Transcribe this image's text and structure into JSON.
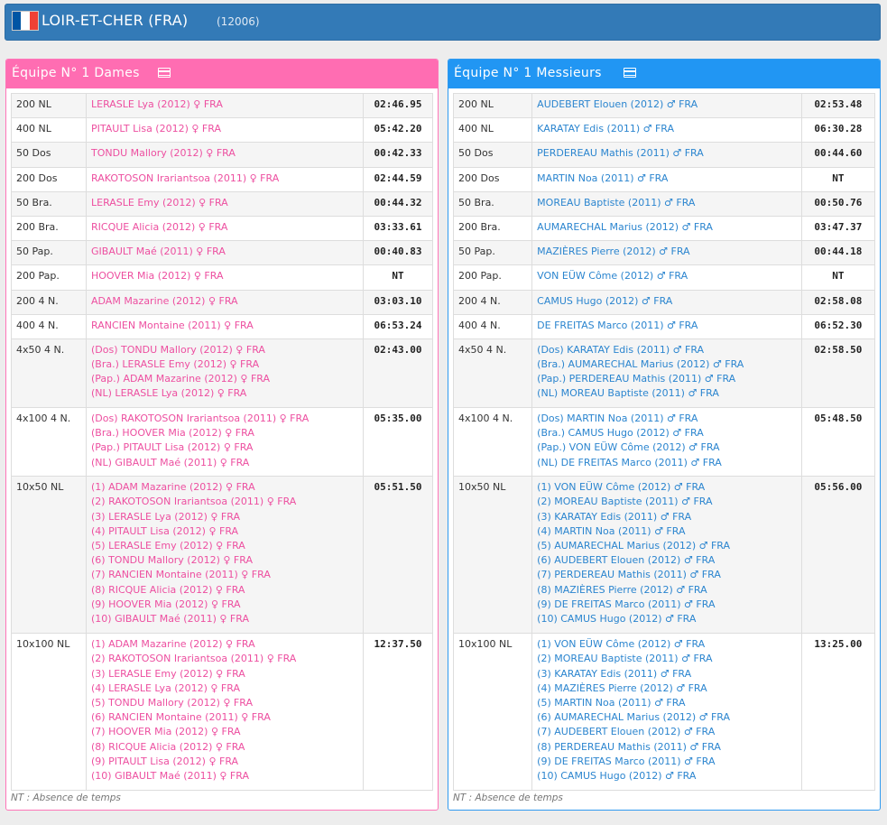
{
  "header": {
    "title": "LOIR-ET-CHER (FRA)",
    "code": "(12006)",
    "flag_colors": [
      "#0055a4",
      "#ffffff",
      "#ef4135"
    ],
    "flag_icon": "france-flag-icon"
  },
  "dames": {
    "title": "Équipe N° 1 Dames",
    "icon": "card-icon",
    "accent": "#ff6db2",
    "note": "NT : Absence de temps",
    "rows": [
      {
        "event": "200 NL",
        "swimmers": [
          "LERASLE Lya (2012) ♀ FRA"
        ],
        "time": "02:46.95"
      },
      {
        "event": "400 NL",
        "swimmers": [
          "PITAULT Lisa (2012) ♀ FRA"
        ],
        "time": "05:42.20"
      },
      {
        "event": "50 Dos",
        "swimmers": [
          "TONDU Mallory (2012) ♀ FRA"
        ],
        "time": "00:42.33"
      },
      {
        "event": "200 Dos",
        "swimmers": [
          "RAKOTOSON Irariantsoa (2011) ♀ FRA"
        ],
        "time": "02:44.59"
      },
      {
        "event": "50 Bra.",
        "swimmers": [
          "LERASLE Emy (2012) ♀ FRA"
        ],
        "time": "00:44.32"
      },
      {
        "event": "200 Bra.",
        "swimmers": [
          "RICQUE Alicia (2012) ♀ FRA"
        ],
        "time": "03:33.61"
      },
      {
        "event": "50 Pap.",
        "swimmers": [
          "GIBAULT Maé (2011) ♀ FRA"
        ],
        "time": "00:40.83"
      },
      {
        "event": "200 Pap.",
        "swimmers": [
          "HOOVER Mia (2012) ♀ FRA"
        ],
        "time": "NT"
      },
      {
        "event": "200 4 N.",
        "swimmers": [
          "ADAM Mazarine (2012) ♀ FRA"
        ],
        "time": "03:03.10"
      },
      {
        "event": "400 4 N.",
        "swimmers": [
          "RANCIEN Montaine (2011) ♀ FRA"
        ],
        "time": "06:53.24"
      },
      {
        "event": "4x50 4 N.",
        "swimmers": [
          "(Dos) TONDU Mallory (2012) ♀ FRA",
          "(Bra.) LERASLE Emy (2012) ♀ FRA",
          "(Pap.) ADAM Mazarine (2012) ♀ FRA",
          "(NL) LERASLE Lya (2012) ♀ FRA"
        ],
        "time": "02:43.00"
      },
      {
        "event": "4x100 4 N.",
        "swimmers": [
          "(Dos) RAKOTOSON Irariantsoa (2011) ♀ FRA",
          "(Bra.) HOOVER Mia (2012) ♀ FRA",
          "(Pap.) PITAULT Lisa (2012) ♀ FRA",
          "(NL) GIBAULT Maé (2011) ♀ FRA"
        ],
        "time": "05:35.00"
      },
      {
        "event": "10x50 NL",
        "swimmers": [
          "(1) ADAM Mazarine (2012) ♀ FRA",
          "(2) RAKOTOSON Irariantsoa (2011) ♀ FRA",
          "(3) LERASLE Lya (2012) ♀ FRA",
          "(4) PITAULT Lisa (2012) ♀ FRA",
          "(5) LERASLE Emy (2012) ♀ FRA",
          "(6) TONDU Mallory (2012) ♀ FRA",
          "(7) RANCIEN Montaine (2011) ♀ FRA",
          "(8) RICQUE Alicia (2012) ♀ FRA",
          "(9) HOOVER Mia (2012) ♀ FRA",
          "(10) GIBAULT Maé (2011) ♀ FRA"
        ],
        "time": "05:51.50"
      },
      {
        "event": "10x100 NL",
        "swimmers": [
          "(1) ADAM Mazarine (2012) ♀ FRA",
          "(2) RAKOTOSON Irariantsoa (2011) ♀ FRA",
          "(3) LERASLE Emy (2012) ♀ FRA",
          "(4) LERASLE Lya (2012) ♀ FRA",
          "(5) TONDU Mallory (2012) ♀ FRA",
          "(6) RANCIEN Montaine (2011) ♀ FRA",
          "(7) HOOVER Mia (2012) ♀ FRA",
          "(8) RICQUE Alicia (2012) ♀ FRA",
          "(9) PITAULT Lisa (2012) ♀ FRA",
          "(10) GIBAULT Maé (2011) ♀ FRA"
        ],
        "time": "12:37.50"
      }
    ]
  },
  "messieurs": {
    "title": "Équipe N° 1 Messieurs",
    "icon": "card-icon",
    "accent": "#2196f3",
    "note": "NT : Absence de temps",
    "rows": [
      {
        "event": "200 NL",
        "swimmers": [
          "AUDEBERT Elouen (2012) ♂ FRA"
        ],
        "time": "02:53.48"
      },
      {
        "event": "400 NL",
        "swimmers": [
          "KARATAY Edis (2011) ♂ FRA"
        ],
        "time": "06:30.28"
      },
      {
        "event": "50 Dos",
        "swimmers": [
          "PERDEREAU Mathis (2011) ♂ FRA"
        ],
        "time": "00:44.60"
      },
      {
        "event": "200 Dos",
        "swimmers": [
          "MARTIN Noa (2011) ♂ FRA"
        ],
        "time": "NT"
      },
      {
        "event": "50 Bra.",
        "swimmers": [
          "MOREAU Baptiste (2011) ♂ FRA"
        ],
        "time": "00:50.76"
      },
      {
        "event": "200 Bra.",
        "swimmers": [
          "AUMARECHAL Marius (2012) ♂ FRA"
        ],
        "time": "03:47.37"
      },
      {
        "event": "50 Pap.",
        "swimmers": [
          "MAZIÈRES Pierre (2012) ♂ FRA"
        ],
        "time": "00:44.18"
      },
      {
        "event": "200 Pap.",
        "swimmers": [
          "VON EÜW Côme (2012) ♂ FRA"
        ],
        "time": "NT"
      },
      {
        "event": "200 4 N.",
        "swimmers": [
          "CAMUS Hugo (2012) ♂ FRA"
        ],
        "time": "02:58.08"
      },
      {
        "event": "400 4 N.",
        "swimmers": [
          "DE FREITAS Marco (2011) ♂ FRA"
        ],
        "time": "06:52.30"
      },
      {
        "event": "4x50 4 N.",
        "swimmers": [
          "(Dos) KARATAY Edis (2011) ♂ FRA",
          "(Bra.) AUMARECHAL Marius (2012) ♂ FRA",
          "(Pap.) PERDEREAU Mathis (2011) ♂ FRA",
          "(NL) MOREAU Baptiste (2011) ♂ FRA"
        ],
        "time": "02:58.50"
      },
      {
        "event": "4x100 4 N.",
        "swimmers": [
          "(Dos) MARTIN Noa (2011) ♂ FRA",
          "(Bra.) CAMUS Hugo (2012) ♂ FRA",
          "(Pap.) VON EÜW Côme (2012) ♂ FRA",
          "(NL) DE FREITAS Marco (2011) ♂ FRA"
        ],
        "time": "05:48.50"
      },
      {
        "event": "10x50 NL",
        "swimmers": [
          "(1) VON EÜW Côme (2012) ♂ FRA",
          "(2) MOREAU Baptiste (2011) ♂ FRA",
          "(3) KARATAY Edis (2011) ♂ FRA",
          "(4) MARTIN Noa (2011) ♂ FRA",
          "(5) AUMARECHAL Marius (2012) ♂ FRA",
          "(6) AUDEBERT Elouen (2012) ♂ FRA",
          "(7) PERDEREAU Mathis (2011) ♂ FRA",
          "(8) MAZIÈRES Pierre (2012) ♂ FRA",
          "(9) DE FREITAS Marco (2011) ♂ FRA",
          "(10) CAMUS Hugo (2012) ♂ FRA"
        ],
        "time": "05:56.00"
      },
      {
        "event": "10x100 NL",
        "swimmers": [
          "(1) VON EÜW Côme (2012) ♂ FRA",
          "(2) MOREAU Baptiste (2011) ♂ FRA",
          "(3) KARATAY Edis (2011) ♂ FRA",
          "(4) MAZIÈRES Pierre (2012) ♂ FRA",
          "(5) MARTIN Noa (2011) ♂ FRA",
          "(6) AUMARECHAL Marius (2012) ♂ FRA",
          "(7) AUDEBERT Elouen (2012) ♂ FRA",
          "(8) PERDEREAU Mathis (2011) ♂ FRA",
          "(9) DE FREITAS Marco (2011) ♂ FRA",
          "(10) CAMUS Hugo (2012) ♂ FRA"
        ],
        "time": "13:25.00"
      }
    ]
  }
}
